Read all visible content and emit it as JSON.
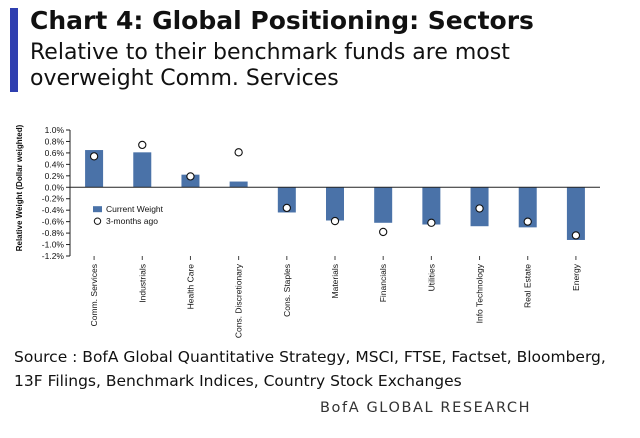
{
  "header": {
    "title": "Chart 4: Global Positioning: Sectors",
    "subtitle": "Relative to their benchmark funds are most overweight Comm. Services"
  },
  "chart_data": {
    "type": "bar",
    "title": "Chart 4: Global Positioning: Sectors",
    "xlabel": "",
    "ylabel": "Relative Weight (Dollar weighted)",
    "ylim": [
      -1.2,
      1.0
    ],
    "ytick_step": 0.2,
    "categories": [
      "Comm. Services",
      "Industrials",
      "Health Care",
      "Cons. Discretionary",
      "Cons. Staples",
      "Materials",
      "Financials",
      "Utilities",
      "Info Technology",
      "Real Estate",
      "Energy"
    ],
    "series": [
      {
        "name": "Current Weight",
        "kind": "bar",
        "color": "#4a72a8",
        "values": [
          0.65,
          0.61,
          0.22,
          0.1,
          -0.44,
          -0.58,
          -0.62,
          -0.65,
          -0.68,
          -0.7,
          -0.92
        ]
      },
      {
        "name": "3-months ago",
        "kind": "marker",
        "color": "#ffffff",
        "values": [
          0.54,
          0.74,
          0.19,
          0.61,
          -0.36,
          -0.59,
          -0.78,
          -0.62,
          -0.37,
          -0.6,
          -0.84
        ]
      }
    ],
    "legend": [
      "Current Weight",
      "3-months ago"
    ],
    "legend_position": "middle-left",
    "grid": false
  },
  "footer": {
    "source": "Source : BofA Global Quantitative Strategy, MSCI, FTSE, Factset, Bloomberg, 13F Filings, Benchmark Indices, Country Stock Exchanges",
    "brand": "BofA GLOBAL RESEARCH"
  }
}
